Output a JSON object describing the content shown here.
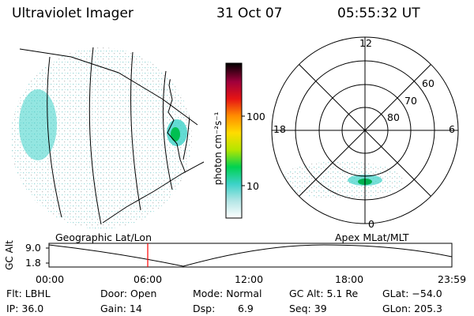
{
  "header": {
    "title": "Ultraviolet Imager",
    "date": "31 Oct 07",
    "time": "05:55:32 UT"
  },
  "colorbar": {
    "unit_label": "photon cm⁻²s⁻¹",
    "ticks": [
      "100",
      "10"
    ]
  },
  "polar": {
    "mlt_labels": {
      "top": "12",
      "left": "18",
      "right": "6",
      "bottom": "0"
    },
    "lat_labels": [
      "60",
      "70",
      "80"
    ]
  },
  "projections": {
    "left_label": "Geographic Lat/Lon",
    "right_label": "Apex MLat/MLT"
  },
  "orbit": {
    "ylabel": "GC Alt",
    "y_ticks": [
      "9.0",
      "1.8"
    ],
    "x_ticks": [
      "00:00",
      "06:00",
      "12:00",
      "18:00",
      "23:59"
    ],
    "marker_time": "05:55:32"
  },
  "info": {
    "flt": "Flt: LBHL",
    "ip": "IP: 36.0",
    "door": "Door: Open",
    "gain": "Gain: 14",
    "mode": "Mode: Normal",
    "dsp_label": "Dsp:",
    "dsp_value": "6.9",
    "gcalt": "GC Alt: 5.1 Re",
    "seq": "Seq: 39",
    "glat": "GLat: −54.0",
    "glon": "GLon: 205.3"
  },
  "colors": {
    "marker": "#ff0000",
    "cb_stops": [
      "#ffffff",
      "#b4e6e6",
      "#3cd2c8",
      "#00d250",
      "#b4e600",
      "#ffdc00",
      "#ff8c00",
      "#e61414",
      "#a0003c",
      "#000000"
    ]
  }
}
